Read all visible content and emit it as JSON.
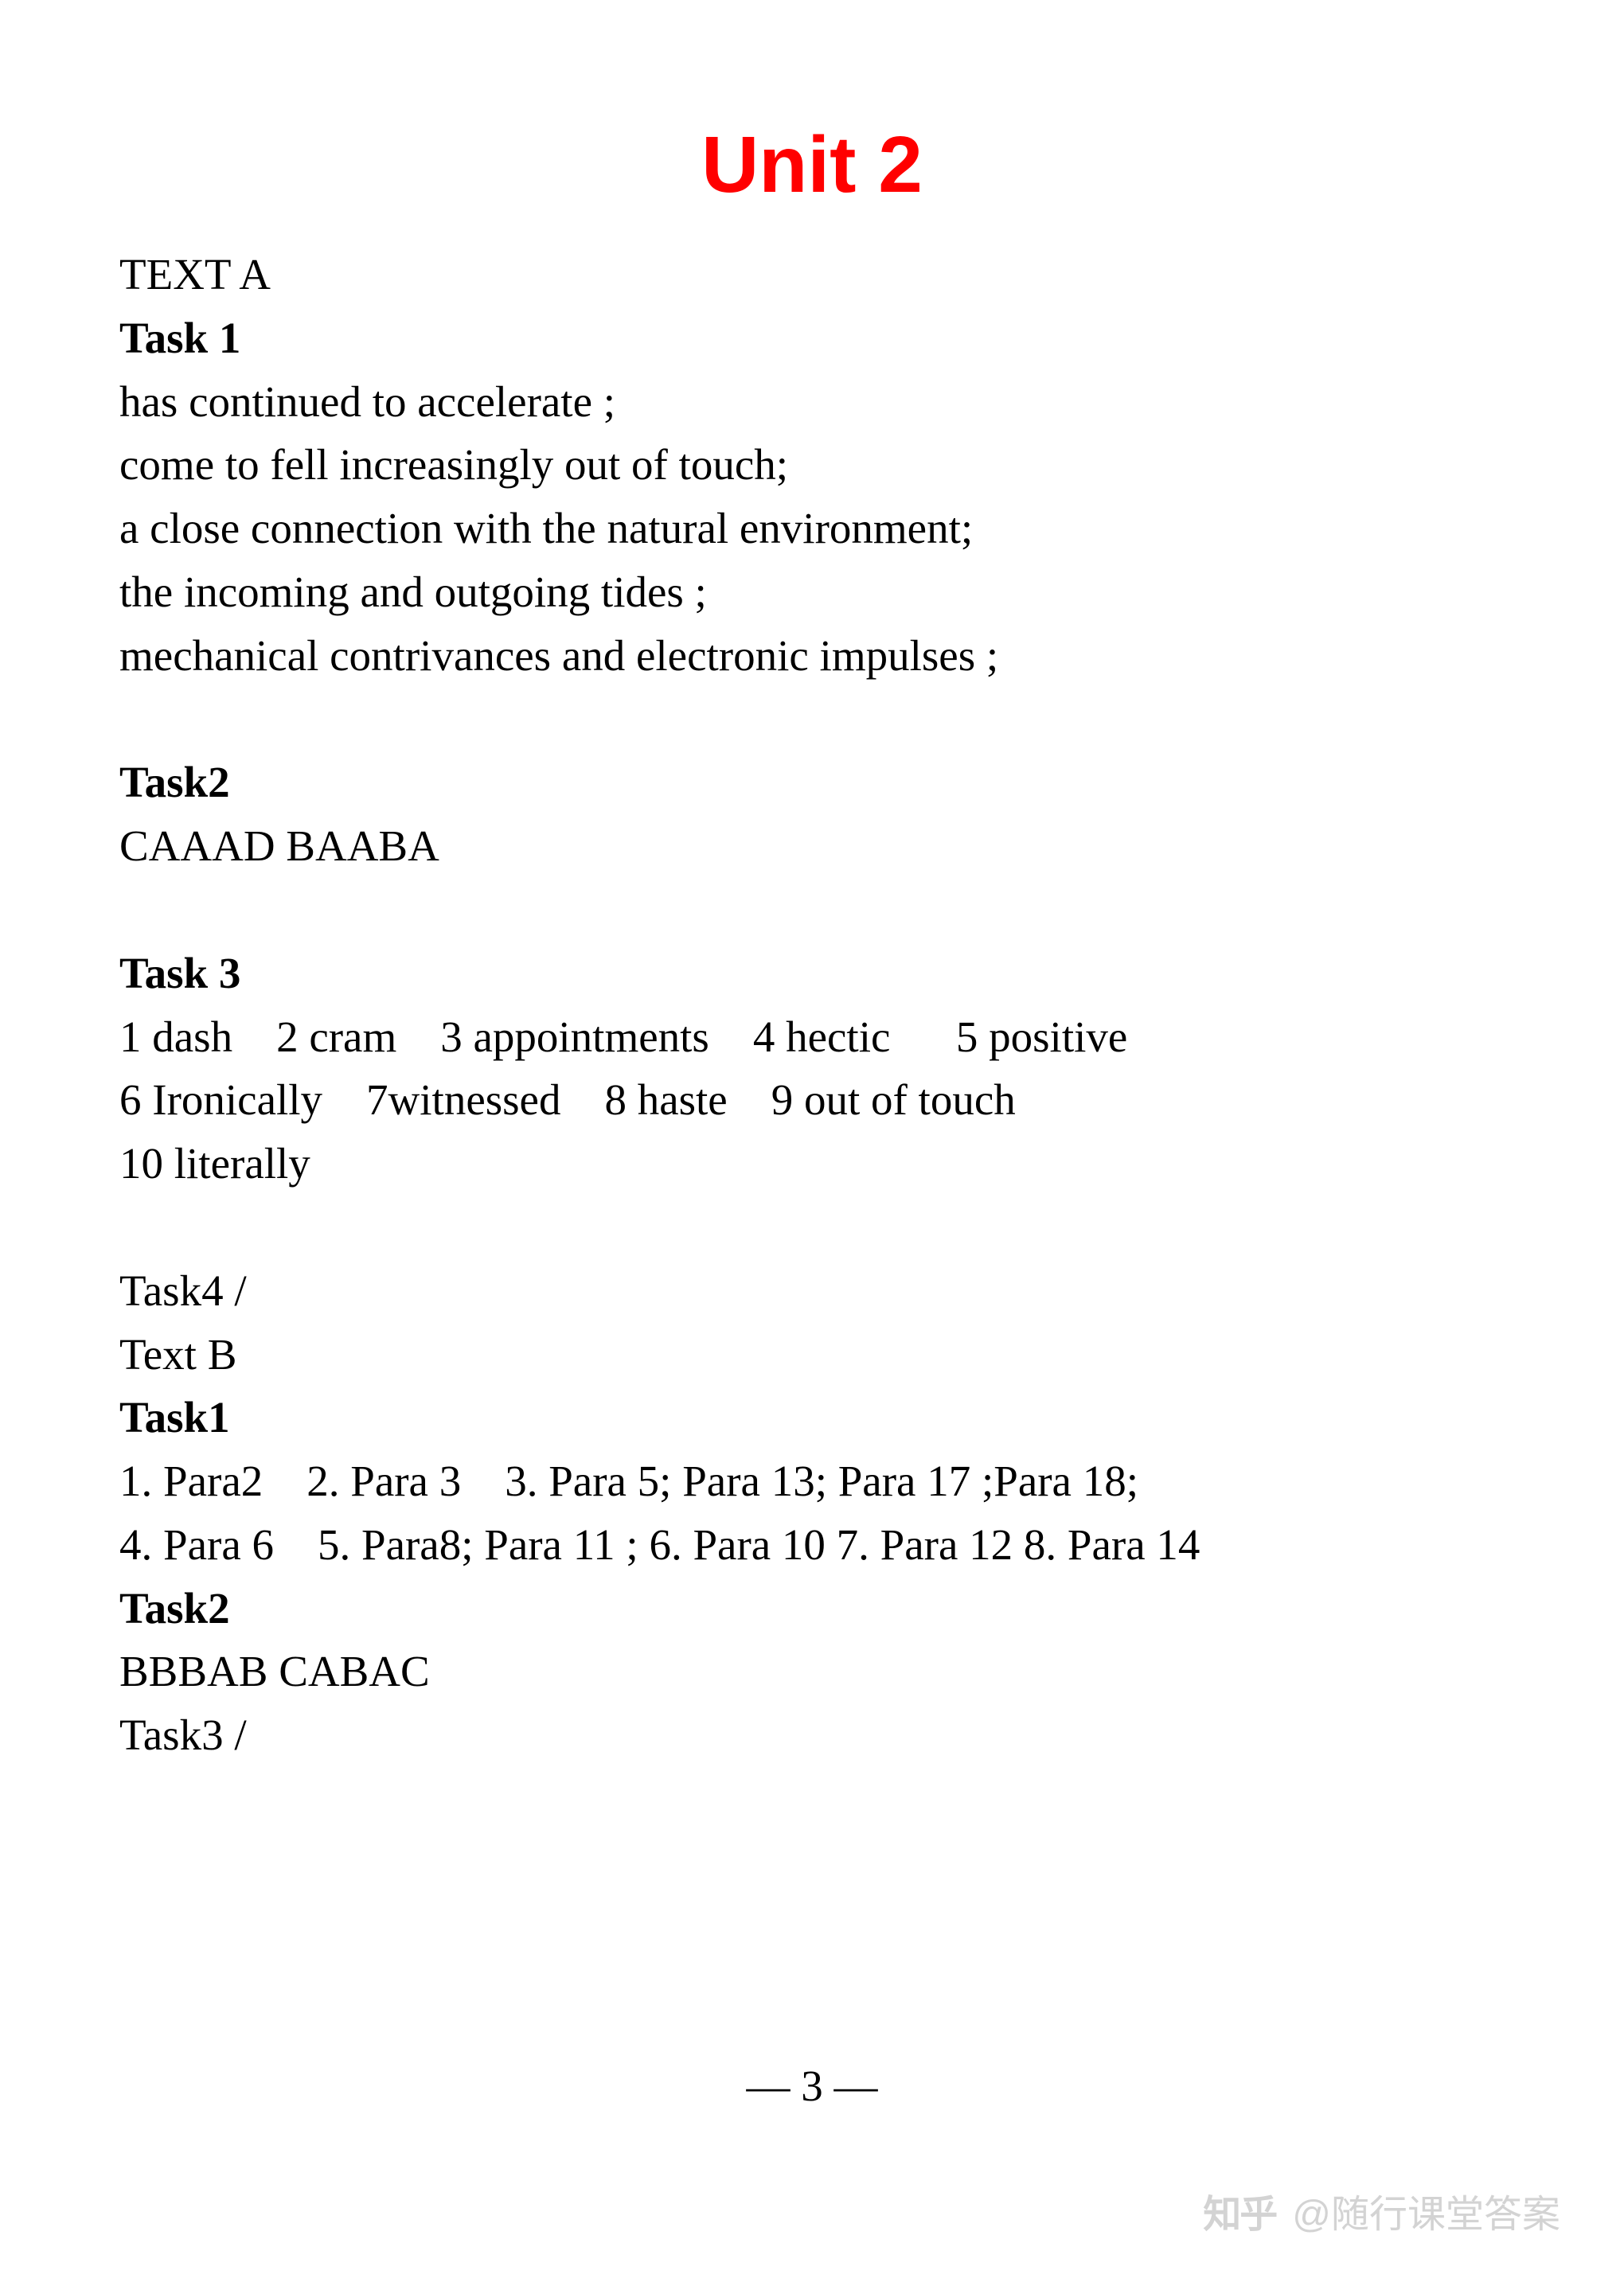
{
  "title": "Unit 2",
  "sections": {
    "textA_label": "TEXT A",
    "task1_label": "Task 1",
    "task1_lines": [
      "has continued to accelerate ;",
      "come to fell increasingly out of touch;",
      "a close connection with the natural environment;",
      "the incoming and outgoing tides ;",
      "mechanical contrivances and electronic impulses ;"
    ],
    "task2_label": "Task2",
    "task2_answer": "CAAAD BAABA",
    "task3_label": "Task 3",
    "task3_lines": [
      "1 dash    2 cram    3 appointments    4 hectic      5 positive",
      "6 Ironically    7witnessed    8 haste    9 out of touch",
      "10 literally"
    ],
    "task4_label": "Task4 /",
    "textB_label": "Text B",
    "textB_task1_label": "Task1",
    "textB_task1_lines": [
      "1. Para2    2. Para 3    3. Para 5; Para 13; Para 17 ;Para 18;",
      "4. Para 6    5. Para8; Para 11 ; 6. Para 10 7. Para 12 8. Para 14"
    ],
    "textB_task2_label": "Task2",
    "textB_task2_answer": "BBBAB CABAC",
    "textB_task3_label": "Task3 /"
  },
  "page_number": "— 3 —",
  "watermark": {
    "logo": "知乎",
    "text": "@随行课堂答案"
  },
  "colors": {
    "title_color": "#ff0000",
    "text_color": "#000000",
    "background_color": "#ffffff",
    "watermark_color": "rgba(130,130,130,0.35)"
  },
  "typography": {
    "title_fontsize": 100,
    "body_fontsize": 55,
    "title_fontfamily": "Arial",
    "body_fontfamily": "Times New Roman"
  }
}
